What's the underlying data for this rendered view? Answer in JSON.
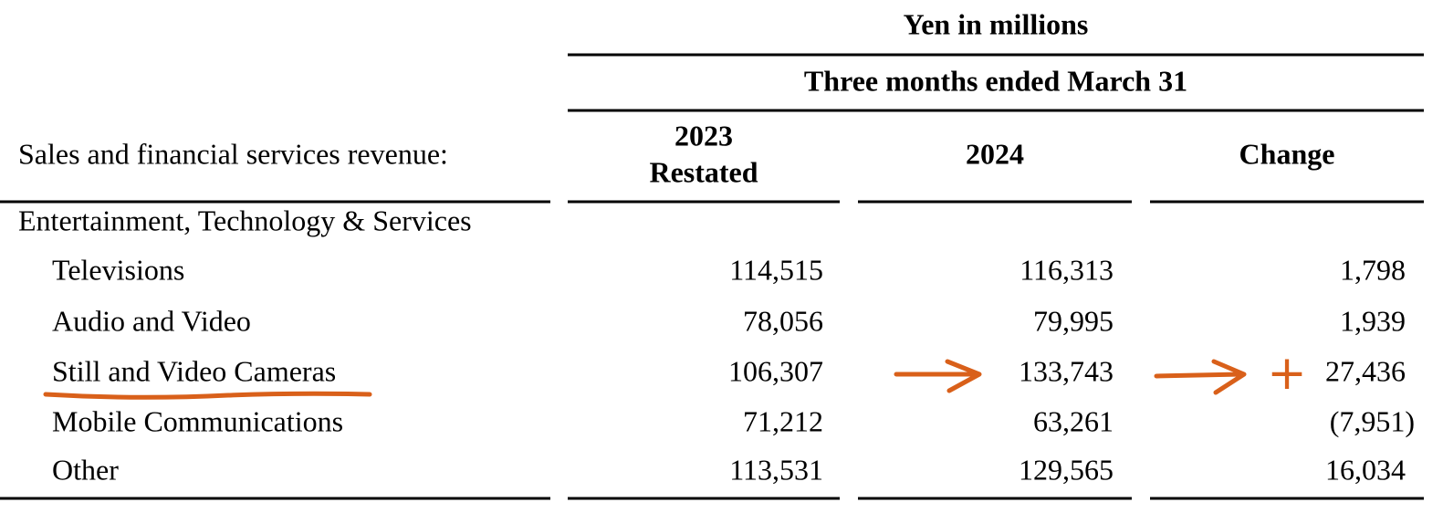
{
  "header": {
    "unit": "Yen in millions",
    "period": "Three months ended March 31",
    "row_label": "Sales and financial services revenue:",
    "columns": [
      [
        "2023",
        "Restated"
      ],
      [
        "2024"
      ],
      [
        "Change"
      ]
    ]
  },
  "table": {
    "section": "Entertainment, Technology & Services",
    "rows": [
      {
        "label": "Televisions",
        "values": [
          "114,515",
          "116,313",
          "1,798"
        ]
      },
      {
        "label": "Audio and Video",
        "values": [
          "78,056",
          "79,995",
          "1,939"
        ]
      },
      {
        "label": "Still and Video Cameras",
        "values": [
          "106,307",
          "133,743",
          "27,436"
        ]
      },
      {
        "label": "Mobile Communications",
        "values": [
          "71,212",
          "63,261",
          "(7,951)"
        ]
      },
      {
        "label": "Other",
        "values": [
          "113,531",
          "129,565",
          "16,034"
        ]
      }
    ]
  },
  "annotation": {
    "mark": "+"
  }
}
